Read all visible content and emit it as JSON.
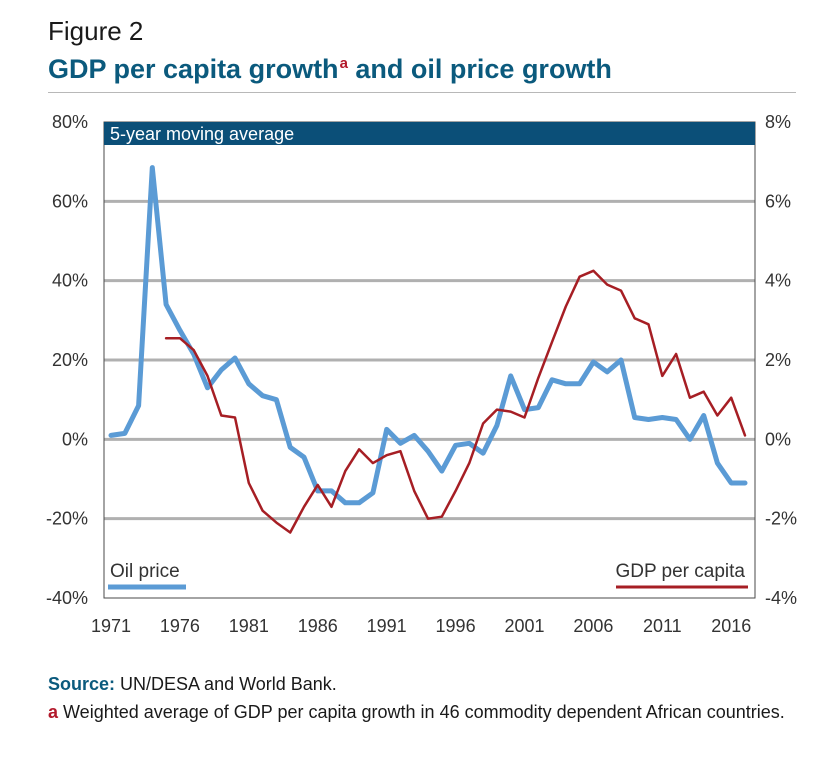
{
  "figure": {
    "label": "Figure 2",
    "title": "GDP per capita growth",
    "title_superscript": "a"
  },
  "chart_data": {
    "type": "line",
    "panel_title": "5-year moving average",
    "x": [
      1971,
      1972,
      1973,
      1974,
      1975,
      1976,
      1977,
      1978,
      1979,
      1980,
      1981,
      1982,
      1983,
      1984,
      1985,
      1986,
      1987,
      1988,
      1989,
      1990,
      1991,
      1992,
      1993,
      1994,
      1995,
      1996,
      1997,
      1998,
      1999,
      2000,
      2001,
      2002,
      2003,
      2004,
      2005,
      2006,
      2007,
      2008,
      2009,
      2010,
      2011,
      2012,
      2013,
      2014,
      2015,
      2016,
      2017
    ],
    "x_tick_labels": [
      "1971",
      "1976",
      "1981",
      "1986",
      "1991",
      "1996",
      "2001",
      "2006",
      "2011",
      "2016"
    ],
    "y_left": {
      "min": -40,
      "max": 80,
      "ticks": [
        "-40%",
        "-20%",
        "0%",
        "20%",
        "40%",
        "60%",
        "80%"
      ]
    },
    "y_right": {
      "min": -4,
      "max": 8,
      "ticks": [
        "-4%",
        "-2%",
        "0%",
        "2%",
        "4%",
        "6%",
        "8%"
      ]
    },
    "grid": true,
    "series": [
      {
        "name": "Oil price",
        "axis": "left",
        "color": "#5b9bd5",
        "values": [
          1,
          1.5,
          8.5,
          68.5,
          34,
          27.5,
          21.5,
          13,
          17.5,
          20.5,
          14,
          11,
          10,
          -2,
          -4.5,
          -13,
          -13,
          -16,
          -16,
          -13.5,
          2.5,
          -1,
          1,
          -3,
          -8,
          -1.5,
          -1,
          -3.5,
          3.5,
          16,
          7.5,
          8,
          15,
          14,
          14,
          19.5,
          17,
          20,
          5.5,
          5,
          5.5,
          5,
          0,
          6,
          -6,
          -11,
          -11
        ]
      },
      {
        "name": "GDP per capita",
        "axis": "right",
        "color": "#a61e24",
        "values": [
          null,
          null,
          null,
          null,
          2.55,
          2.55,
          2.25,
          1.6,
          0.6,
          0.55,
          -1.1,
          -1.8,
          -2.1,
          -2.35,
          -1.7,
          -1.15,
          -1.7,
          -0.8,
          -0.25,
          -0.6,
          -0.4,
          -0.3,
          -1.3,
          -2,
          -1.95,
          -1.3,
          -0.6,
          0.4,
          0.75,
          0.7,
          0.55,
          1.55,
          2.45,
          3.35,
          4.1,
          4.25,
          3.9,
          3.75,
          3.05,
          2.9,
          1.6,
          2.15,
          1.05,
          1.2,
          0.6,
          1.05,
          0.1
        ]
      }
    ],
    "legend": {
      "position": "bottom",
      "left_label": "Oil price",
      "right_label": "GDP per capita"
    }
  },
  "footer": {
    "source_label": "Source:",
    "source_text": " UN/DESA and World Bank.",
    "note_marker": "a",
    "note_text": " Weighted average of GDP per capita growth in 46 commodity dependent African countries."
  }
}
